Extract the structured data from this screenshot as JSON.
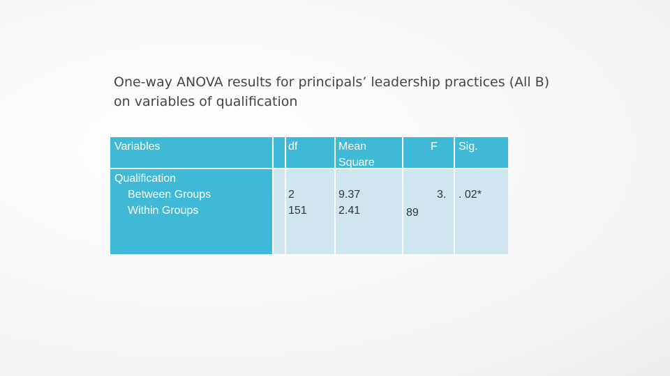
{
  "title": {
    "line1": "One-way ANOVA results for principals’ leadership practices (All B)",
    "line2": "on variables of qualification"
  },
  "table": {
    "headers": {
      "variables": "Variables",
      "df": "df",
      "mean_square_line1": "Mean",
      "mean_square_line2": "Square",
      "f": "F",
      "sig": "Sig."
    },
    "row": {
      "variable_group": "Qualification",
      "between_groups": "Between Groups",
      "within_groups": "Within Groups",
      "df_between": "2",
      "df_within": "151",
      "ms_between": "9.37",
      "ms_within": "2.41",
      "f_part1": "3.",
      "f_part2": "89",
      "sig": ". 02*"
    }
  },
  "colors": {
    "header_bg": "#3fb9d6",
    "body_bg": "#cfe6ef",
    "header_text": "#ffffff"
  }
}
